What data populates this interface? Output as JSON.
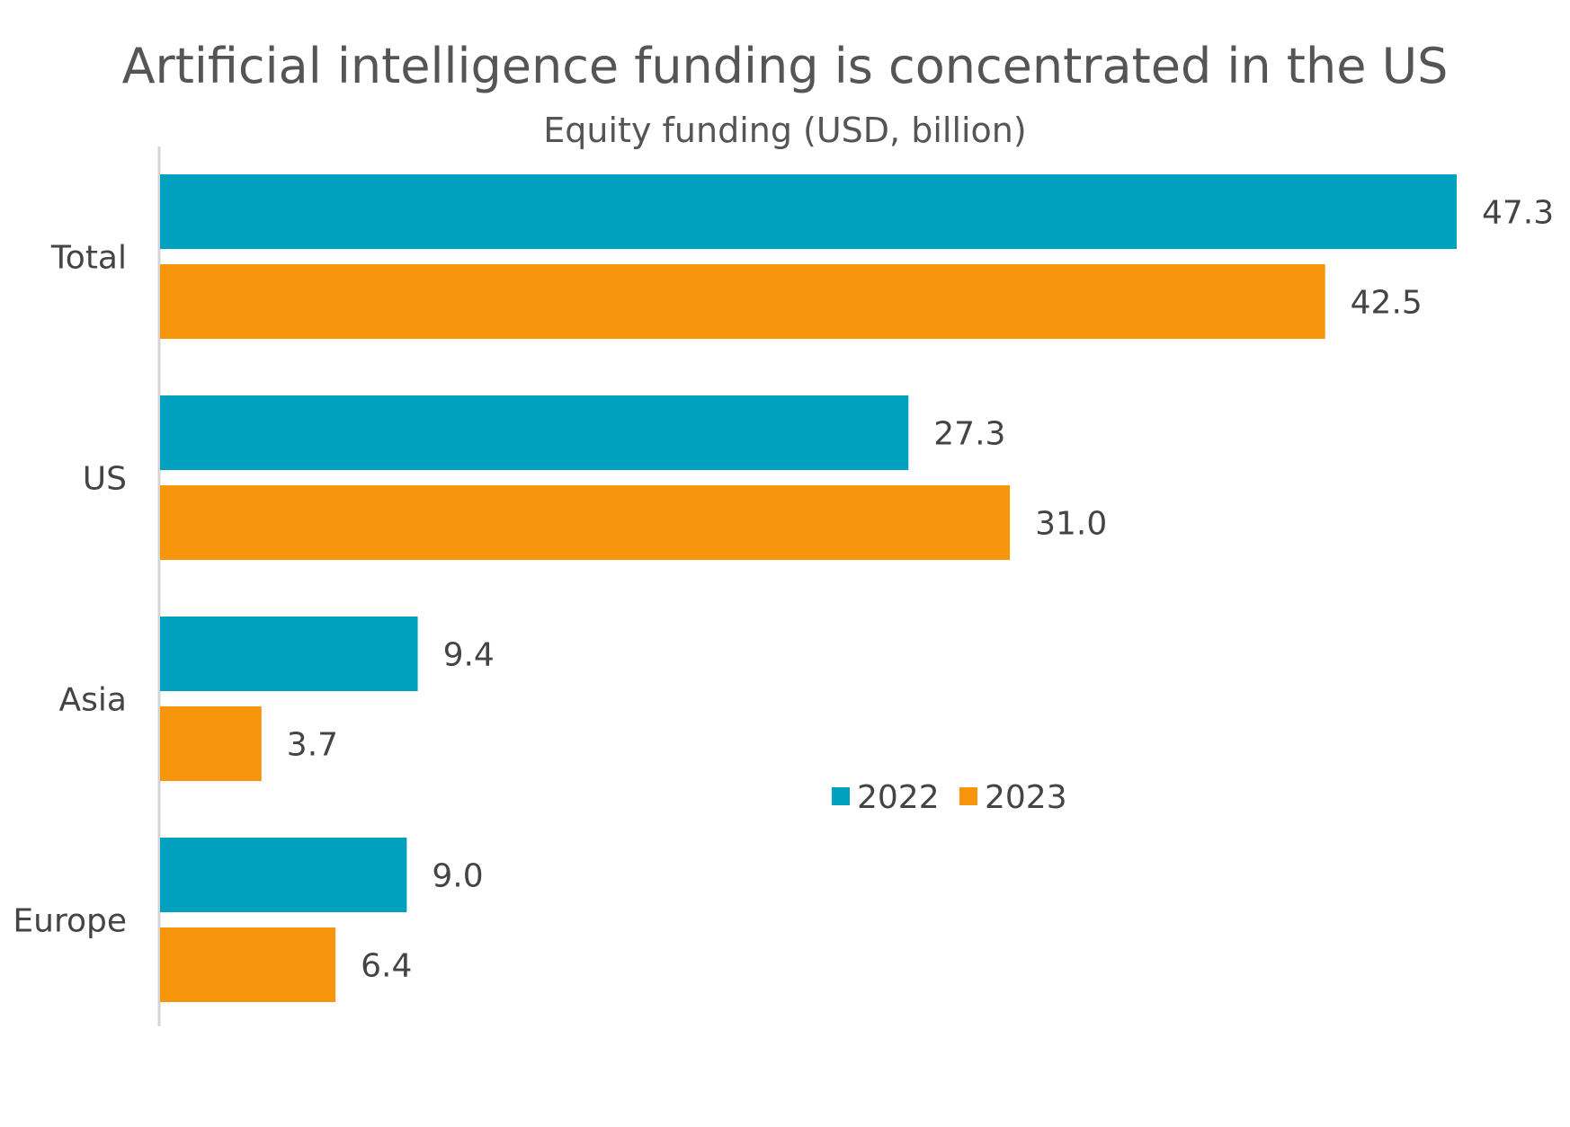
{
  "chart_data": {
    "type": "bar",
    "orientation": "horizontal",
    "title": "Artificial intelligence funding is concentrated in the US",
    "subtitle": "Equity funding (USD, billion)",
    "categories": [
      "Total",
      "US",
      "Asia",
      "Europe"
    ],
    "series": [
      {
        "name": "2022",
        "values": [
          47.3,
          27.3,
          9.4,
          9.0
        ],
        "value_labels": [
          "47.3",
          "27.3",
          "9.4",
          "9.0"
        ],
        "color": "#00A1BF"
      },
      {
        "name": "2023",
        "values": [
          42.5,
          31.0,
          3.7,
          6.4
        ],
        "value_labels": [
          "42.5",
          "31.0",
          "3.7",
          "6.4"
        ],
        "color": "#F7950C"
      }
    ],
    "xlim": [
      0,
      47.3
    ],
    "grid": false,
    "legend": "center-right",
    "axis_color": "#d4d4d4"
  }
}
